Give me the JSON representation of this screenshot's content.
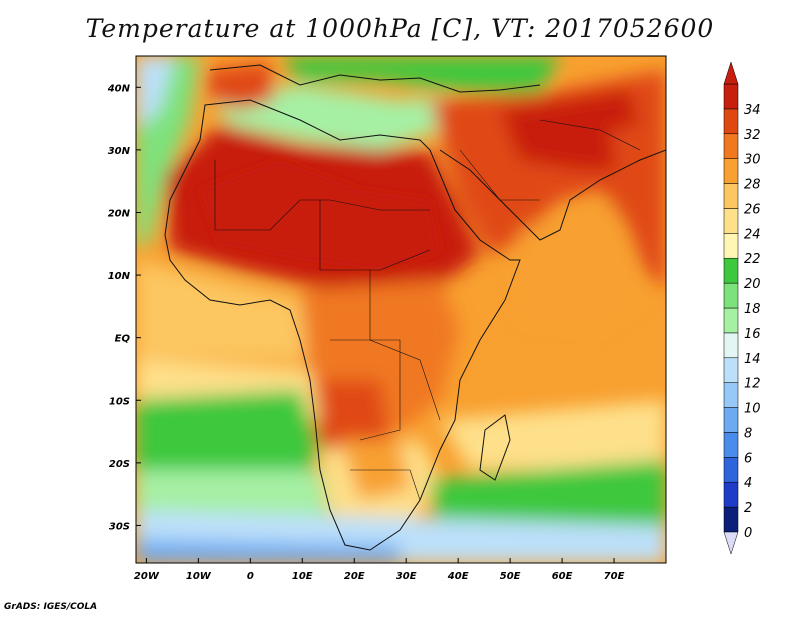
{
  "title": "Temperature at 1000hPa [C], VT: 2017052600",
  "credit": "GrADS: IGES/COLA",
  "map": {
    "projection": "lat-lon",
    "lon_range": [
      -22,
      80
    ],
    "lat_range": [
      -36,
      45
    ],
    "lon_ticks": [
      {
        "lon": -20,
        "label": "20W"
      },
      {
        "lon": -10,
        "label": "10W"
      },
      {
        "lon": 0,
        "label": "0"
      },
      {
        "lon": 10,
        "label": "10E"
      },
      {
        "lon": 20,
        "label": "20E"
      },
      {
        "lon": 30,
        "label": "30E"
      },
      {
        "lon": 40,
        "label": "40E"
      },
      {
        "lon": 50,
        "label": "50E"
      },
      {
        "lon": 60,
        "label": "60E"
      },
      {
        "lon": 70,
        "label": "70E"
      }
    ],
    "lat_ticks": [
      {
        "lat": 40,
        "label": "40N"
      },
      {
        "lat": 30,
        "label": "30N"
      },
      {
        "lat": 20,
        "label": "20N"
      },
      {
        "lat": 10,
        "label": "10N"
      },
      {
        "lat": 0,
        "label": "EQ"
      },
      {
        "lat": -10,
        "label": "10S"
      },
      {
        "lat": -20,
        "label": "20S"
      },
      {
        "lat": -30,
        "label": "30S"
      }
    ],
    "variable": "Temperature at 1000hPa",
    "units": "C"
  },
  "colorbar": {
    "levels": [
      "0",
      "2",
      "4",
      "6",
      "8",
      "10",
      "12",
      "14",
      "16",
      "18",
      "20",
      "22",
      "24",
      "26",
      "28",
      "30",
      "32",
      "34"
    ],
    "colors": [
      "#0a1e7a",
      "#1e3cc8",
      "#2e64dc",
      "#4a8cec",
      "#6eaaf2",
      "#96c8f8",
      "#bce0fa",
      "#e2f6f4",
      "#a6f0a4",
      "#7ee27c",
      "#3ec83e",
      "#fff6b4",
      "#fee08a",
      "#fcc660",
      "#f8a030",
      "#f07820",
      "#e04812",
      "#c81e0e"
    ],
    "under_color": "#dcdcf8",
    "over_color": "#c81e0e"
  },
  "regions": {
    "ocean_south_cool": "#6eaaf2",
    "ocean_south_mid": "#bce0fa",
    "ocean_south_green": "#7ee27c",
    "ocean_tropical": "#fcc660",
    "mediterranean": "#a6f0a4",
    "sahara": "#e04812",
    "sahara_core": "#c81e0e",
    "congo": "#f07820",
    "arabia": "#e04812",
    "indian_ocean": "#f8a030",
    "southern_africa": "#fee08a"
  }
}
